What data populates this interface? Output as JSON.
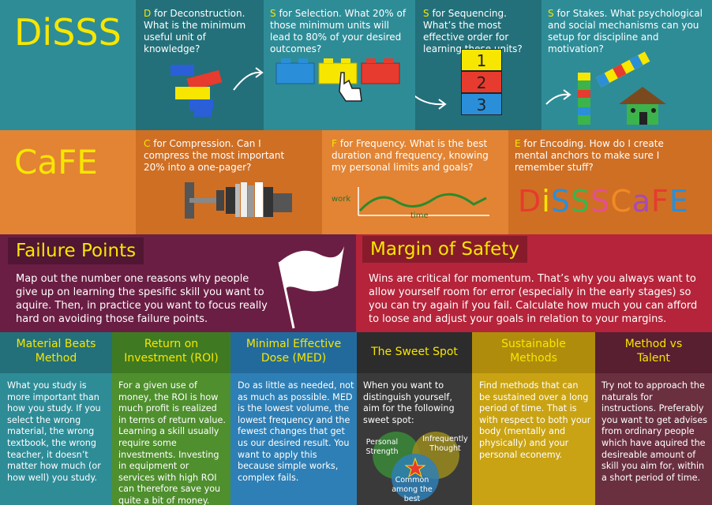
{
  "colors": {
    "teal": "#2e8c97",
    "teal_dark": "#23707a",
    "orange": "#e28433",
    "orange_dark": "#cf6f24",
    "purple": "#6b1e44",
    "red": "#b5243a",
    "yellow": "#f7e600"
  },
  "disss": {
    "title": "DiSSS",
    "d": {
      "letter": "D",
      "text": " for Deconstruction. What is the minimum useful unit of knowledge?"
    },
    "s1": {
      "letter": "S",
      "text": " for Selection. What 20% of those minimum units will lead to 80% of your desired outcomes?"
    },
    "s2": {
      "letter": "S",
      "text": " for Sequencing. What’s the most effective order for learning these units?"
    },
    "s3": {
      "letter": "S",
      "text": " for Stakes. What psychological and social mechanisms can you setup for discipline and motivation?"
    },
    "numbers": [
      "1",
      "2",
      "3"
    ]
  },
  "cafe": {
    "title": "CaFE",
    "c": {
      "letter": "C",
      "text": " for Compression. Can I compress the most important 20% into a one-pager?"
    },
    "f": {
      "letter": "F",
      "text": " for Frequency. What is the best duration and frequency, knowing my personal limits and goals?"
    },
    "e": {
      "letter": "E",
      "text": " for Encoding. How do I create mental anchors to make sure I remember stuff?"
    },
    "graph_y": "work",
    "graph_x": "time",
    "logo_letters": [
      "D",
      "i",
      "S",
      "S",
      "S",
      "C",
      "a",
      "F",
      "E"
    ],
    "logo_colors": [
      "#e63b2e",
      "#f7e600",
      "#2a8fd8",
      "#3cb44b",
      "#e3508f",
      "#f08a24",
      "#a64ab8",
      "#e63b2e",
      "#2a8fd8"
    ]
  },
  "failure": {
    "title": "Failure Points",
    "text": "Map out the number one reasons why people give up on learning the spesific skill you want to aquire. Then, in practice you want to focus really hard on avoiding those failure points."
  },
  "margin": {
    "title": "Margin of Safety",
    "text": "Wins are critical for momentum. That’s why you always want to allow yourself room for error (especially in the early stages) so you can try again if you fail. Calculate how much you can afford to loose and adjust your goals in relation to your margins."
  },
  "columns": [
    {
      "title": "Material Beats Method",
      "text": "What you study is more important than how you study. If you select the wrong material, the wrong textbook, the wrong teacher, it doesn’t matter how much (or how well) you study."
    },
    {
      "title": "Return on Investment (ROI)",
      "text": "For a given use of money, the ROI is how much profit is realized in terms of return value. Learning a skill usually require some investments. Investing in equipment or services with high ROI can therefore save you quite a bit of money."
    },
    {
      "title": "Minimal Effective Dose (MED)",
      "text": "Do as little as needed, not as much as possible. MED is the lowest volume, the lowest frequency and the fewest changes that get us our desired result. You want to apply this because simple works, complex fails."
    },
    {
      "title": "The Sweet Spot",
      "text": "When you want to distinguish yourself, aim for the following sweet spot:"
    },
    {
      "title": "Sustainable Methods",
      "text": "Find methods that can be sustained over a long period of time. That is with respect to both your body (mentally and physically) and your personal econemy."
    },
    {
      "title": "Method vs Talent",
      "text": "Try not to approach the naturals for instructions. Preferably you want to get advises from ordinary people which have aquired the desireable amount of skill you aim for, within a short period of time."
    }
  ],
  "venn": {
    "a": "Personal Strength",
    "b": "Infrequently Thought",
    "c": "Common among the best"
  }
}
